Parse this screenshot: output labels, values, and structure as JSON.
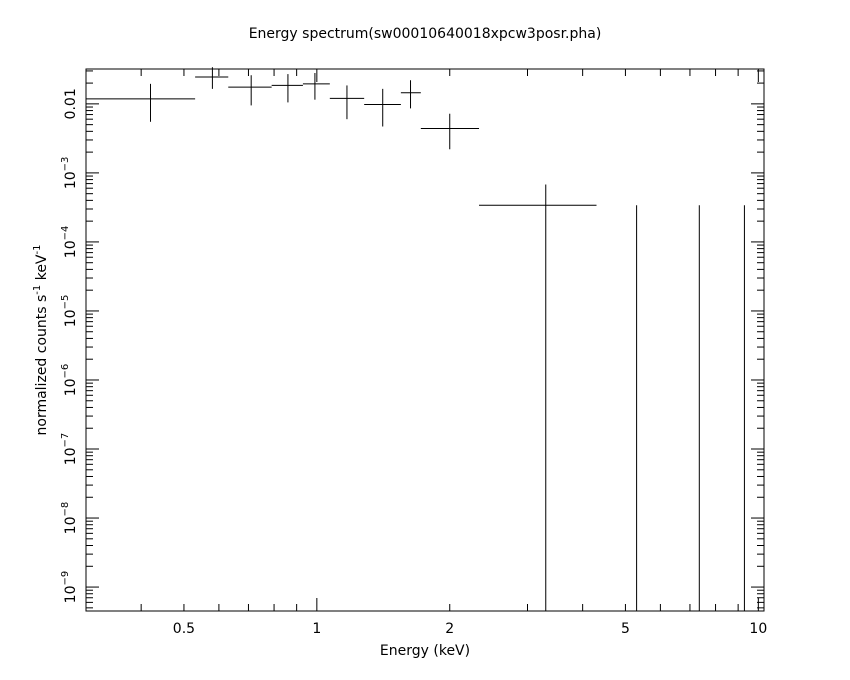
{
  "chart_data": {
    "type": "scatter",
    "title": "Energy spectrum(sw00010640018xpcw3posr.pha)",
    "xlabel": "Energy (keV)",
    "ylabel": "normalized counts s",
    "ylabel_sup1": "-1",
    "ylabel_mid": " keV",
    "ylabel_sup2": "-1",
    "x_scale": "log",
    "y_scale": "log",
    "xlim": [
      0.3,
      10.3
    ],
    "ylim": [
      4.5e-10,
      0.032
    ],
    "x_ticks": [
      {
        "value": 0.5,
        "label": "0.5"
      },
      {
        "value": 1,
        "label": "1"
      },
      {
        "value": 2,
        "label": "2"
      },
      {
        "value": 5,
        "label": "5"
      },
      {
        "value": 10,
        "label": "10"
      }
    ],
    "y_ticks": [
      {
        "value": 0.01,
        "base": "0.01",
        "exp": ""
      },
      {
        "value": 0.001,
        "base": "10",
        "exp": "−3"
      },
      {
        "value": 0.0001,
        "base": "10",
        "exp": "−4"
      },
      {
        "value": 1e-05,
        "base": "10",
        "exp": "−5"
      },
      {
        "value": 1e-06,
        "base": "10",
        "exp": "−6"
      },
      {
        "value": 1e-07,
        "base": "10",
        "exp": "−7"
      },
      {
        "value": 1e-08,
        "base": "10",
        "exp": "−8"
      },
      {
        "value": 1e-09,
        "base": "10",
        "exp": "−9"
      }
    ],
    "points": [
      {
        "x": 0.42,
        "xlo": 0.3,
        "xhi": 0.53,
        "y": 0.0118,
        "ylo": 0.0055,
        "yhi": 0.0195
      },
      {
        "x": 0.58,
        "xlo": 0.53,
        "xhi": 0.63,
        "y": 0.0245,
        "ylo": 0.0165,
        "yhi": 0.034
      },
      {
        "x": 0.71,
        "xlo": 0.63,
        "xhi": 0.79,
        "y": 0.0175,
        "ylo": 0.0095,
        "yhi": 0.026
      },
      {
        "x": 0.86,
        "xlo": 0.79,
        "xhi": 0.93,
        "y": 0.0185,
        "ylo": 0.0105,
        "yhi": 0.027
      },
      {
        "x": 0.99,
        "xlo": 0.93,
        "xhi": 1.07,
        "y": 0.0195,
        "ylo": 0.0115,
        "yhi": 0.028
      },
      {
        "x": 1.17,
        "xlo": 1.07,
        "xhi": 1.28,
        "y": 0.012,
        "ylo": 0.006,
        "yhi": 0.0185
      },
      {
        "x": 1.41,
        "xlo": 1.28,
        "xhi": 1.55,
        "y": 0.0098,
        "ylo": 0.0047,
        "yhi": 0.0165
      },
      {
        "x": 1.63,
        "xlo": 1.55,
        "xhi": 1.72,
        "y": 0.0145,
        "ylo": 0.0086,
        "yhi": 0.022
      },
      {
        "x": 2.0,
        "xlo": 1.72,
        "xhi": 2.33,
        "y": 0.0044,
        "ylo": 0.0022,
        "yhi": 0.0072
      },
      {
        "x": 3.3,
        "xlo": 2.33,
        "xhi": 4.3,
        "y": 0.00034,
        "ylo": 1e-12,
        "yhi": 0.00068
      },
      {
        "x": 5.3,
        "xlo": 5.3,
        "xhi": 5.3,
        "y": 0.00034,
        "ylo": 1e-12,
        "yhi": 0.00034
      },
      {
        "x": 7.35,
        "xlo": 7.35,
        "xhi": 7.35,
        "y": 0.00034,
        "ylo": 1e-12,
        "yhi": 0.00034
      },
      {
        "x": 9.3,
        "xlo": 9.3,
        "xhi": 9.3,
        "y": 0.00034,
        "ylo": 1e-12,
        "yhi": 0.00034
      }
    ],
    "grid": false,
    "legend": "none"
  }
}
